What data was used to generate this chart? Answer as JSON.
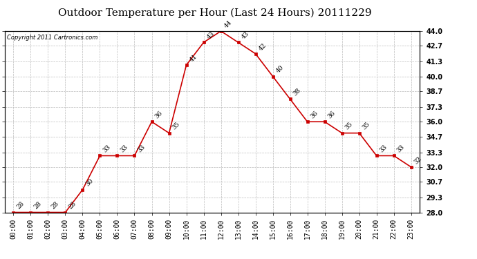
{
  "title": "Outdoor Temperature per Hour (Last 24 Hours) 20111229",
  "copyright": "Copyright 2011 Cartronics.com",
  "hours": [
    "00:00",
    "01:00",
    "02:00",
    "03:00",
    "04:00",
    "05:00",
    "06:00",
    "07:00",
    "08:00",
    "09:00",
    "10:00",
    "11:00",
    "12:00",
    "13:00",
    "14:00",
    "15:00",
    "16:00",
    "17:00",
    "18:00",
    "19:00",
    "20:00",
    "21:00",
    "22:00",
    "23:00"
  ],
  "temps": [
    28,
    28,
    28,
    28,
    30,
    33,
    33,
    33,
    36,
    35,
    41,
    43,
    44,
    43,
    42,
    40,
    38,
    36,
    36,
    35,
    35,
    33,
    33,
    32
  ],
  "ylim_min": 28.0,
  "ylim_max": 44.0,
  "yticks": [
    28.0,
    29.3,
    30.7,
    32.0,
    33.3,
    34.7,
    36.0,
    37.3,
    38.7,
    40.0,
    41.3,
    42.7,
    44.0
  ],
  "ytick_labels": [
    "28.0",
    "29.3",
    "30.7",
    "32.0",
    "33.3",
    "34.7",
    "36.0",
    "37.3",
    "38.7",
    "40.0",
    "41.3",
    "42.7",
    "44.0"
  ],
  "line_color": "#cc0000",
  "marker_color": "#cc0000",
  "bg_color": "#ffffff",
  "grid_color": "#bbbbbb",
  "title_fontsize": 11,
  "tick_fontsize": 7,
  "anno_fontsize": 6.5
}
